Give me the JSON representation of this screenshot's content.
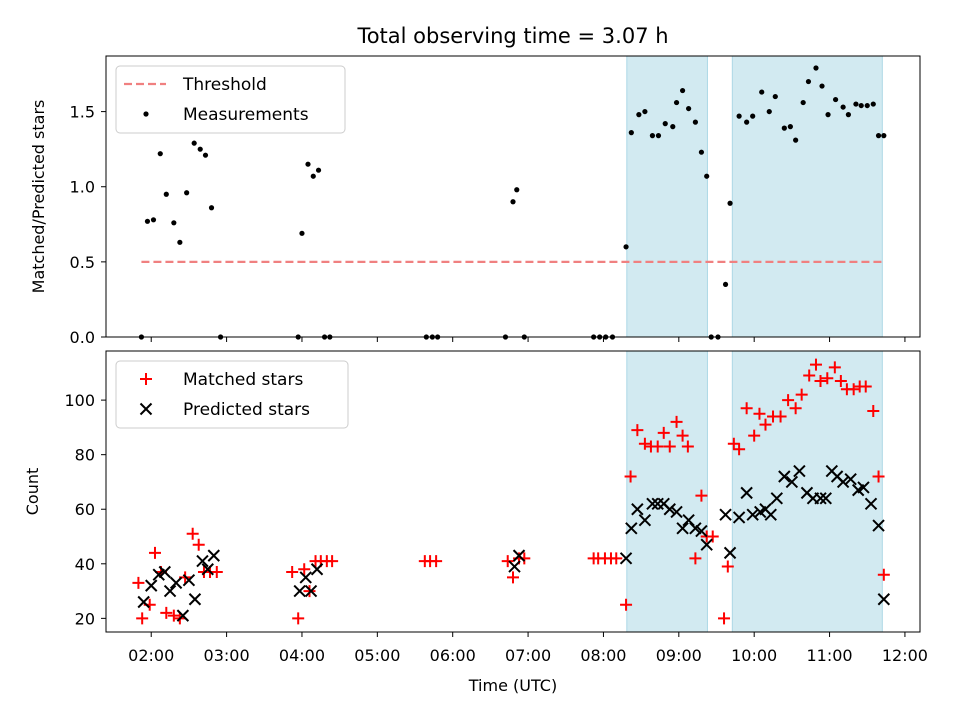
{
  "figure_title": "Total observing time = 3.07 h",
  "colors": {
    "threshold": "#f08080",
    "measurement": "#000000",
    "matched": "#ff0000",
    "predicted": "#000000",
    "shade": "#add8e6"
  },
  "chart_data": [
    {
      "type": "scatter",
      "title": "Total observing time = 3.07 h",
      "xlabel": "",
      "ylabel": "Matched/Predicted stars",
      "xlim": [
        1.4,
        12.2
      ],
      "ylim": [
        0,
        1.87
      ],
      "yticks": [
        "0.0",
        "0.5",
        "1.0",
        "1.5"
      ],
      "shaded_intervals": [
        [
          8.31,
          9.38
        ],
        [
          9.71,
          11.7
        ]
      ],
      "legend": {
        "placement": "upper-left",
        "entries": [
          "Threshold",
          "Measurements"
        ]
      },
      "series": [
        {
          "name": "Threshold",
          "style": "dashed-line",
          "x": [
            1.87,
            11.7
          ],
          "y": [
            0.5,
            0.5
          ]
        },
        {
          "name": "Measurements",
          "style": "dot",
          "x": [
            1.87,
            1.95,
            2.03,
            2.12,
            2.2,
            2.3,
            2.38,
            2.47,
            2.57,
            2.65,
            2.72,
            2.8,
            2.92,
            3.95,
            4.0,
            4.08,
            4.15,
            4.22,
            4.3,
            4.37,
            5.65,
            5.73,
            5.8,
            6.7,
            6.8,
            6.85,
            6.95,
            7.87,
            7.95,
            8.03,
            8.12,
            8.3,
            8.37,
            8.47,
            8.55,
            8.65,
            8.73,
            8.82,
            8.92,
            8.97,
            9.05,
            9.13,
            9.22,
            9.3,
            9.37,
            9.43,
            9.52,
            9.62,
            9.68,
            9.8,
            9.9,
            9.98,
            10.1,
            10.2,
            10.28,
            10.4,
            10.48,
            10.55,
            10.65,
            10.72,
            10.82,
            10.9,
            10.98,
            11.08,
            11.18,
            11.25,
            11.35,
            11.42,
            11.5,
            11.58,
            11.65,
            11.72
          ],
          "y": [
            0.0,
            0.77,
            0.78,
            1.22,
            0.95,
            0.76,
            0.63,
            0.96,
            1.29,
            1.25,
            1.21,
            0.86,
            0.0,
            0.0,
            0.69,
            1.15,
            1.07,
            1.11,
            0.0,
            0.0,
            0.0,
            0.0,
            0.0,
            0.0,
            0.9,
            0.98,
            0.0,
            0.0,
            0.0,
            0.0,
            0.0,
            0.6,
            1.36,
            1.48,
            1.5,
            1.34,
            1.34,
            1.42,
            1.4,
            1.56,
            1.64,
            1.52,
            1.43,
            1.23,
            1.07,
            0.0,
            0.0,
            0.35,
            0.89,
            1.47,
            1.43,
            1.47,
            1.63,
            1.5,
            1.6,
            1.39,
            1.4,
            1.31,
            1.56,
            1.7,
            1.79,
            1.67,
            1.48,
            1.58,
            1.53,
            1.48,
            1.55,
            1.54,
            1.54,
            1.55,
            1.34,
            1.34
          ]
        }
      ]
    },
    {
      "type": "scatter",
      "title": "",
      "xlabel": "Time (UTC)",
      "ylabel": "Count",
      "xlim": [
        1.4,
        12.2
      ],
      "ylim": [
        15,
        118
      ],
      "xticks": [
        "02:00",
        "03:00",
        "04:00",
        "05:00",
        "06:00",
        "07:00",
        "08:00",
        "09:00",
        "10:00",
        "11:00",
        "12:00"
      ],
      "yticks": [
        "20",
        "40",
        "60",
        "80",
        "100"
      ],
      "shaded_intervals": [
        [
          8.31,
          9.38
        ],
        [
          9.71,
          11.7
        ]
      ],
      "legend": {
        "placement": "upper-left",
        "entries": [
          "Matched stars",
          "Predicted stars"
        ]
      },
      "series": [
        {
          "name": "Matched stars",
          "style": "plus",
          "x": [
            1.83,
            1.88,
            1.98,
            2.05,
            2.13,
            2.2,
            2.3,
            2.38,
            2.45,
            2.55,
            2.63,
            2.7,
            2.78,
            2.87,
            3.87,
            3.95,
            4.03,
            4.1,
            4.18,
            4.25,
            4.33,
            4.4,
            5.63,
            5.7,
            5.78,
            6.73,
            6.8,
            6.88,
            6.95,
            7.87,
            7.93,
            8.02,
            8.1,
            8.17,
            8.3,
            8.36,
            8.45,
            8.55,
            8.63,
            8.72,
            8.8,
            8.88,
            8.97,
            9.05,
            9.12,
            9.22,
            9.3,
            9.37,
            9.45,
            9.6,
            9.65,
            9.73,
            9.8,
            9.9,
            10.0,
            10.07,
            10.15,
            10.25,
            10.35,
            10.45,
            10.55,
            10.63,
            10.73,
            10.82,
            10.88,
            10.97,
            11.07,
            11.15,
            11.23,
            11.32,
            11.4,
            11.48,
            11.58,
            11.65,
            11.72
          ],
          "y": [
            33,
            20,
            25,
            44,
            37,
            22,
            21,
            20,
            35,
            51,
            47,
            37,
            37,
            37,
            37,
            20,
            38,
            30,
            41,
            41,
            41,
            41,
            41,
            41,
            41,
            41,
            35,
            42,
            42,
            42,
            42,
            42,
            42,
            42,
            25,
            72,
            89,
            84,
            83,
            83,
            88,
            83,
            92,
            87,
            83,
            42,
            65,
            50,
            50,
            20,
            39,
            84,
            82,
            97,
            87,
            95,
            91,
            94,
            94,
            100,
            97,
            102,
            109,
            113,
            107,
            108,
            112,
            107,
            104,
            104,
            105,
            105,
            96,
            72,
            36
          ]
        },
        {
          "name": "Predicted stars",
          "style": "x",
          "x": [
            1.9,
            2.0,
            2.1,
            2.18,
            2.25,
            2.33,
            2.42,
            2.5,
            2.58,
            2.68,
            2.75,
            2.83,
            3.97,
            4.05,
            4.12,
            4.2,
            6.82,
            6.88,
            8.3,
            8.37,
            8.45,
            8.55,
            8.65,
            8.72,
            8.8,
            8.88,
            8.97,
            9.05,
            9.13,
            9.22,
            9.3,
            9.37,
            9.62,
            9.68,
            9.8,
            9.9,
            9.98,
            10.08,
            10.15,
            10.22,
            10.3,
            10.4,
            10.5,
            10.6,
            10.7,
            10.78,
            10.88,
            10.95,
            11.03,
            11.1,
            11.18,
            11.28,
            11.38,
            11.45,
            11.55,
            11.65,
            11.72
          ],
          "y": [
            26,
            32,
            36,
            37,
            30,
            33,
            21,
            34,
            27,
            41,
            38,
            43,
            30,
            35,
            30,
            38,
            39,
            43,
            42,
            53,
            60,
            56,
            62,
            62,
            62,
            60,
            59,
            53,
            56,
            53,
            52,
            47,
            58,
            44,
            57,
            66,
            58,
            59,
            60,
            58,
            64,
            72,
            70,
            74,
            66,
            64,
            64,
            64,
            74,
            72,
            70,
            71,
            67,
            68,
            62,
            54,
            27
          ]
        }
      ]
    }
  ]
}
